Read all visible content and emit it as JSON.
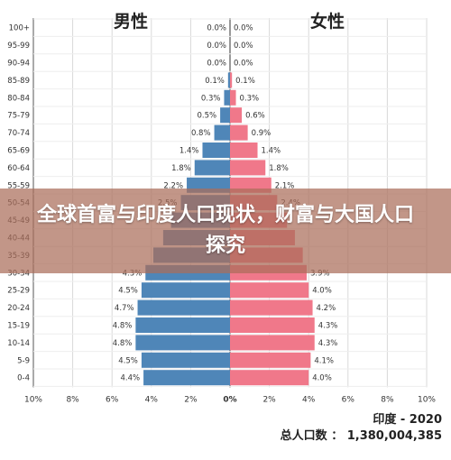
{
  "overlay": {
    "headline": "全球首富与印度人口现状，财富与大国人口探究"
  },
  "colors": {
    "male": "#4f86b8",
    "female": "#f0788a",
    "grid": "#d9d9d9",
    "axis_line": "#555555"
  },
  "chart_data": {
    "type": "bar",
    "subtype": "population-pyramid",
    "title": "印度 - 2020",
    "subtitle": "总人口数 ： 1,380,004,385",
    "left_header": "男性",
    "right_header": "女性",
    "categories": [
      "100+",
      "95-99",
      "90-94",
      "85-89",
      "80-84",
      "75-79",
      "70-74",
      "65-69",
      "60-64",
      "55-59",
      "50-54",
      "45-49",
      "40-44",
      "35-39",
      "30-34",
      "25-29",
      "20-24",
      "15-19",
      "10-14",
      "5-9",
      "0-4"
    ],
    "series": [
      {
        "name": "男性",
        "values": [
          0.0,
          0.0,
          0.0,
          0.1,
          0.3,
          0.5,
          0.8,
          1.4,
          1.8,
          2.2,
          2.5,
          3.0,
          3.4,
          3.9,
          4.3,
          4.5,
          4.7,
          4.8,
          4.8,
          4.5,
          4.4
        ],
        "labels": [
          "0.0%",
          "0.0%",
          "0.0%",
          "0.1%",
          "0.3%",
          "0.5%",
          "0.8%",
          "1.4%",
          "1.8%",
          "2.2%",
          "2.5%",
          "",
          "",
          "",
          "4.3%",
          "4.5%",
          "4.7%",
          "4.8%",
          "4.8%",
          "4.5%",
          "4.4%"
        ]
      },
      {
        "name": "女性",
        "values": [
          0.0,
          0.0,
          0.0,
          0.1,
          0.3,
          0.6,
          0.9,
          1.4,
          1.8,
          2.1,
          2.4,
          2.9,
          3.3,
          3.7,
          3.9,
          4.0,
          4.2,
          4.3,
          4.3,
          4.1,
          4.0
        ],
        "labels": [
          "0.0%",
          "0.0%",
          "0.0%",
          "0.1%",
          "0.3%",
          "0.6%",
          "0.9%",
          "1.4%",
          "1.8%",
          "2.1%",
          "2.4%",
          "",
          "",
          "",
          "3.9%",
          "4.0%",
          "4.2%",
          "4.3%",
          "4.3%",
          "4.1%",
          "4.0%"
        ]
      }
    ],
    "xlim": [
      -10,
      10
    ],
    "xticks": [
      -10,
      -8,
      -6,
      -4,
      -2,
      0,
      2,
      4,
      6,
      8,
      10
    ],
    "xtick_labels": [
      "10%",
      "8%",
      "6%",
      "4%",
      "2%",
      "0%",
      "2%",
      "4%",
      "6%",
      "8%",
      "10%"
    ],
    "grid": true
  }
}
